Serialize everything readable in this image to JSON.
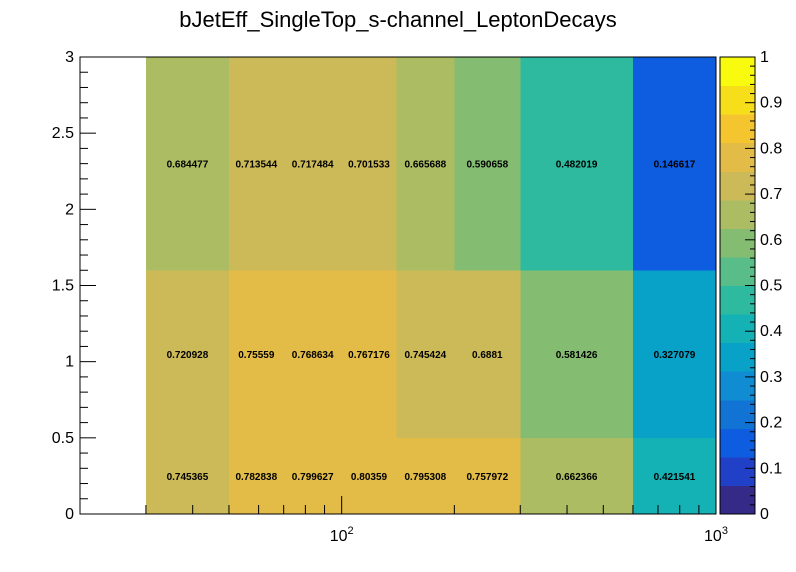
{
  "chart_data": {
    "type": "heatmap",
    "title": "bJetEff_SingleTop_s-channel_LeptonDecays",
    "xlabel": "",
    "ylabel": "",
    "x_scale": "log",
    "xlim": [
      20,
      1000
    ],
    "ylim": [
      0,
      3
    ],
    "x_edges": [
      30,
      50,
      70,
      100,
      140,
      200,
      300,
      600,
      1000
    ],
    "y_edges": [
      0,
      0.5,
      1.6,
      3
    ],
    "rows": [
      {
        "label": "0-0.5",
        "values": [
          0.745365,
          0.782838,
          0.799627,
          0.80359,
          0.795308,
          0.757972,
          0.662366,
          0.421541
        ]
      },
      {
        "label": "0.5-1.6",
        "values": [
          0.720928,
          0.75559,
          0.768634,
          0.767176,
          0.745424,
          0.6881,
          0.581426,
          0.327079
        ]
      },
      {
        "label": "1.6-3",
        "values": [
          0.684477,
          0.713544,
          0.717484,
          0.701533,
          0.665688,
          0.590658,
          0.482019,
          0.146617
        ]
      }
    ],
    "x_ticks": [
      {
        "value": 100,
        "base": "10",
        "exp": "2"
      },
      {
        "value": 1000,
        "base": "10",
        "exp": "3"
      }
    ],
    "y_ticks": [
      "0",
      "0.5",
      "1",
      "1.5",
      "2",
      "2.5",
      "3"
    ],
    "zlim": [
      0,
      1
    ],
    "z_ticks": [
      "0",
      "0.1",
      "0.2",
      "0.3",
      "0.4",
      "0.5",
      "0.6",
      "0.7",
      "0.8",
      "0.9",
      "1"
    ],
    "palette": [
      "#352a87",
      "#2140c8",
      "#0e5de0",
      "#1173d4",
      "#0f8cd2",
      "#08a2c9",
      "#14b1b5",
      "#2dba9e",
      "#59bd89",
      "#84bd72",
      "#acbc63",
      "#ccba58",
      "#e3bb47",
      "#f5c530",
      "#f7de1b",
      "#f9fb0e"
    ],
    "grid": false,
    "legend": "colorbar-right"
  }
}
